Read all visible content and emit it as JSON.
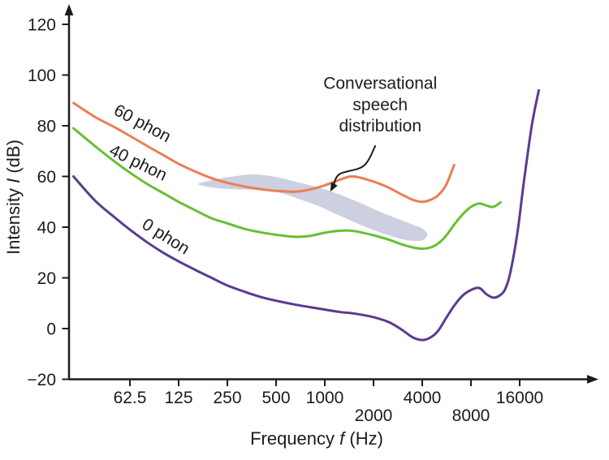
{
  "figure": {
    "background": "#ffffff"
  },
  "chart_data": {
    "type": "line",
    "title": "",
    "xlabel": "Frequency f (Hz)",
    "xlabel_parts": {
      "pre": "Frequency ",
      "var": "f",
      "post": " (Hz)"
    },
    "ylabel": "Intensity I (dB)",
    "ylabel_parts": {
      "pre": "Intensity ",
      "var": "I",
      "post": " (dB)"
    },
    "x_scale": "log",
    "xlim": [
      27,
      23000
    ],
    "ylim": [
      -20,
      120
    ],
    "grid": false,
    "legend": "labels-on-curves",
    "axis_color": "#1c1c1c",
    "text_color": "#1c1c1c",
    "y_ticks": [
      {
        "v": 120,
        "label": "120"
      },
      {
        "v": 100,
        "label": "100"
      },
      {
        "v": 80,
        "label": "80"
      },
      {
        "v": 60,
        "label": "60"
      },
      {
        "v": 40,
        "label": "40"
      },
      {
        "v": 20,
        "label": "20"
      },
      {
        "v": 0,
        "label": "0"
      },
      {
        "v": -20,
        "label": "−20"
      }
    ],
    "x_ticks": [
      {
        "f": 62.5,
        "label": "62.5",
        "row": 1
      },
      {
        "f": 125,
        "label": "125",
        "row": 1
      },
      {
        "f": 250,
        "label": "250",
        "row": 1
      },
      {
        "f": 500,
        "label": "500",
        "row": 1
      },
      {
        "f": 1000,
        "label": "1000",
        "row": 1
      },
      {
        "f": 2000,
        "label": "2000",
        "row": 2
      },
      {
        "f": 4000,
        "label": "4000",
        "row": 1
      },
      {
        "f": 8000,
        "label": "8000",
        "row": 2
      },
      {
        "f": 16000,
        "label": "16000",
        "row": 1
      }
    ],
    "series": [
      {
        "name": "60 phon",
        "color": "#ed7d54",
        "points": [
          [
            28,
            89
          ],
          [
            38,
            83.5
          ],
          [
            50,
            79.5
          ],
          [
            62.5,
            76
          ],
          [
            80,
            72
          ],
          [
            100,
            68.5
          ],
          [
            125,
            65
          ],
          [
            160,
            61.8
          ],
          [
            200,
            59.3
          ],
          [
            250,
            57.5
          ],
          [
            320,
            56
          ],
          [
            400,
            55
          ],
          [
            500,
            54.3
          ],
          [
            650,
            54
          ],
          [
            800,
            54.8
          ],
          [
            1000,
            56.5
          ],
          [
            1250,
            58.8
          ],
          [
            1500,
            60
          ],
          [
            2000,
            58
          ],
          [
            2500,
            55.5
          ],
          [
            3000,
            52.8
          ],
          [
            3500,
            50.8
          ],
          [
            4000,
            50
          ],
          [
            4500,
            50.8
          ],
          [
            5000,
            52.5
          ],
          [
            5600,
            56.5
          ],
          [
            6300,
            64.5
          ]
        ]
      },
      {
        "name": "40 phon",
        "color": "#67c033",
        "points": [
          [
            28,
            79
          ],
          [
            38,
            72
          ],
          [
            50,
            66
          ],
          [
            62.5,
            61.5
          ],
          [
            80,
            57
          ],
          [
            100,
            53.5
          ],
          [
            125,
            50
          ],
          [
            160,
            46.5
          ],
          [
            200,
            43.5
          ],
          [
            250,
            41.5
          ],
          [
            320,
            39.3
          ],
          [
            400,
            38
          ],
          [
            500,
            37
          ],
          [
            650,
            36.2
          ],
          [
            800,
            36.5
          ],
          [
            1000,
            37.8
          ],
          [
            1250,
            38.6
          ],
          [
            1500,
            38.5
          ],
          [
            2000,
            36.8
          ],
          [
            2500,
            35
          ],
          [
            3000,
            33.2
          ],
          [
            3500,
            32
          ],
          [
            4000,
            31.5
          ],
          [
            4500,
            32
          ],
          [
            5000,
            33.5
          ],
          [
            5600,
            36.5
          ],
          [
            6300,
            41
          ],
          [
            7100,
            45
          ],
          [
            8000,
            48
          ],
          [
            9000,
            49.3
          ],
          [
            10000,
            48.5
          ],
          [
            11000,
            48
          ],
          [
            12200,
            49.8
          ]
        ]
      },
      {
        "name": "0 phon",
        "color": "#5b3b90",
        "points": [
          [
            28,
            60
          ],
          [
            38,
            50.5
          ],
          [
            50,
            44
          ],
          [
            62.5,
            39
          ],
          [
            80,
            34
          ],
          [
            100,
            30
          ],
          [
            125,
            26.5
          ],
          [
            160,
            23
          ],
          [
            200,
            20
          ],
          [
            250,
            17
          ],
          [
            320,
            14.5
          ],
          [
            400,
            12.5
          ],
          [
            500,
            11
          ],
          [
            650,
            9.5
          ],
          [
            800,
            8.5
          ],
          [
            1000,
            7.5
          ],
          [
            1250,
            6.5
          ],
          [
            1500,
            6
          ],
          [
            2000,
            4.5
          ],
          [
            2500,
            2.5
          ],
          [
            3000,
            -0.5
          ],
          [
            3500,
            -3.5
          ],
          [
            4000,
            -4.5
          ],
          [
            4500,
            -3.5
          ],
          [
            5000,
            -1
          ],
          [
            5600,
            4
          ],
          [
            6300,
            9
          ],
          [
            7100,
            13
          ],
          [
            8000,
            15.2
          ],
          [
            9000,
            16
          ],
          [
            10000,
            13.5
          ],
          [
            11000,
            12.2
          ],
          [
            12000,
            13
          ],
          [
            13000,
            15.5
          ],
          [
            14000,
            22
          ],
          [
            15500,
            38
          ],
          [
            17000,
            58
          ],
          [
            19000,
            80
          ],
          [
            21000,
            94
          ]
        ]
      }
    ],
    "curve_labels": [
      {
        "text": "60 phon",
        "f": 72,
        "db": 79,
        "rotation": 28
      },
      {
        "text": "40 phon",
        "f": 68,
        "db": 63.5,
        "rotation": 26
      },
      {
        "text": "0 phon",
        "f": 100,
        "db": 34.5,
        "rotation": 32
      }
    ],
    "speech_region": {
      "name": "Conversational speech distribution",
      "color": "#c6cbdd",
      "opacity": 0.9,
      "outline": [
        [
          165,
          57
        ],
        [
          210,
          58.8
        ],
        [
          270,
          60
        ],
        [
          350,
          60.8
        ],
        [
          450,
          60.3
        ],
        [
          570,
          59
        ],
        [
          700,
          57.5
        ],
        [
          900,
          55.8
        ],
        [
          1100,
          54
        ],
        [
          1400,
          51.5
        ],
        [
          1800,
          48.5
        ],
        [
          2300,
          45.5
        ],
        [
          2900,
          43
        ],
        [
          3500,
          41
        ],
        [
          4000,
          39.5
        ],
        [
          4300,
          37
        ],
        [
          4000,
          34.8
        ],
        [
          3500,
          34.6
        ],
        [
          2900,
          35.5
        ],
        [
          2300,
          37.5
        ],
        [
          1800,
          40
        ],
        [
          1400,
          43
        ],
        [
          1100,
          46
        ],
        [
          900,
          48.5
        ],
        [
          700,
          51
        ],
        [
          570,
          53
        ],
        [
          450,
          54.3
        ],
        [
          350,
          54.8
        ],
        [
          270,
          55
        ],
        [
          210,
          55.5
        ]
      ]
    },
    "annotation": {
      "lines": [
        "Conversational",
        "speech",
        "distribution"
      ],
      "f": 2200,
      "top_db": 94.5,
      "line_step_db": 8.4,
      "arrow_from": [
        2050,
        72
      ],
      "arrow_to": [
        1080,
        54
      ]
    }
  }
}
